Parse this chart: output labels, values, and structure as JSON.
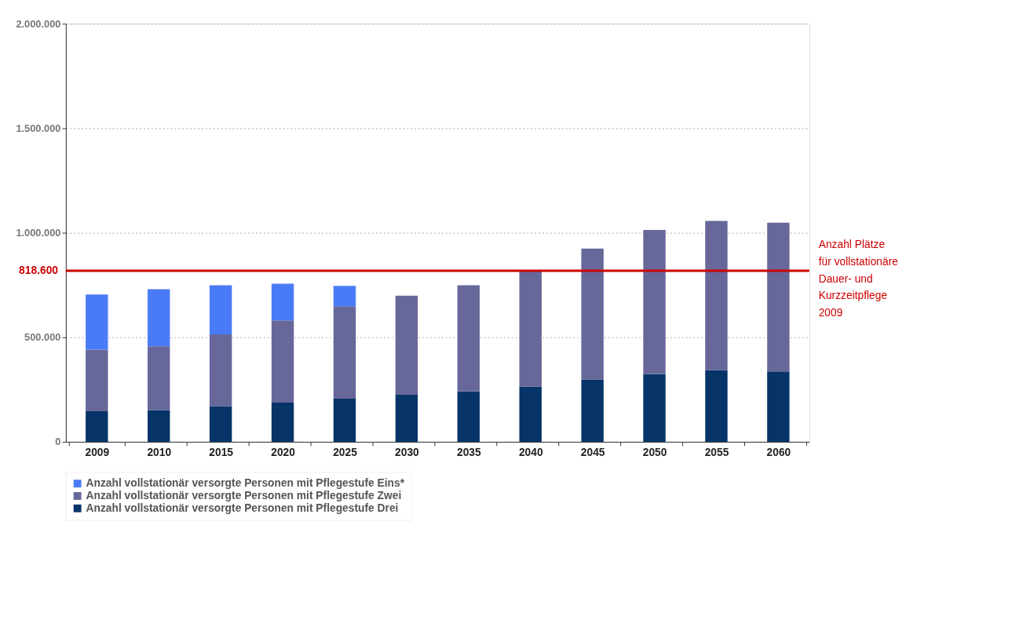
{
  "chart_data": {
    "type": "bar",
    "stacked": true,
    "categories": [
      "2009",
      "2010",
      "2015",
      "2020",
      "2025",
      "2030",
      "2035",
      "2040",
      "2045",
      "2050",
      "2055",
      "2060"
    ],
    "series": [
      {
        "name": "Anzahl vollstationär versorgte Personen mit Pflegestufe Drei",
        "color": "#063468",
        "values": [
          146000,
          152000,
          171000,
          187000,
          206000,
          225000,
          241000,
          264000,
          298000,
          324000,
          343000,
          337000
        ]
      },
      {
        "name": "Anzahl vollstationär versorgte Personen mit Pflegestufe Zwei",
        "color": "#67679a",
        "values": [
          295000,
          305000,
          343000,
          394000,
          442000,
          474000,
          508000,
          558000,
          626000,
          689000,
          714000,
          711000
        ]
      },
      {
        "name": "Anzahl vollstationär versorgte Personen mit Pflegestufe Eins*",
        "color": "#4a7bf7",
        "values": [
          264000,
          273000,
          235000,
          175000,
          98000,
          null,
          null,
          null,
          null,
          null,
          null,
          null
        ]
      }
    ],
    "ylim": [
      0,
      2000000
    ],
    "yticks": [
      {
        "value": 0,
        "label": "0"
      },
      {
        "value": 500000,
        "label": "500.000"
      },
      {
        "value": 1000000,
        "label": "1.000.000"
      },
      {
        "value": 1500000,
        "label": "1.500.000"
      },
      {
        "value": 2000000,
        "label": "2.000.000"
      }
    ],
    "ref_lines": [
      {
        "axis": "y",
        "value": 818600,
        "label": "818.600",
        "color": "#cc0000"
      }
    ],
    "annotations": [
      "Anzahl Plätze\nfür vollstationäre\nDauer- und\nKurzzeitpflege\n2009"
    ],
    "grid": "y",
    "legend": "bottom"
  }
}
